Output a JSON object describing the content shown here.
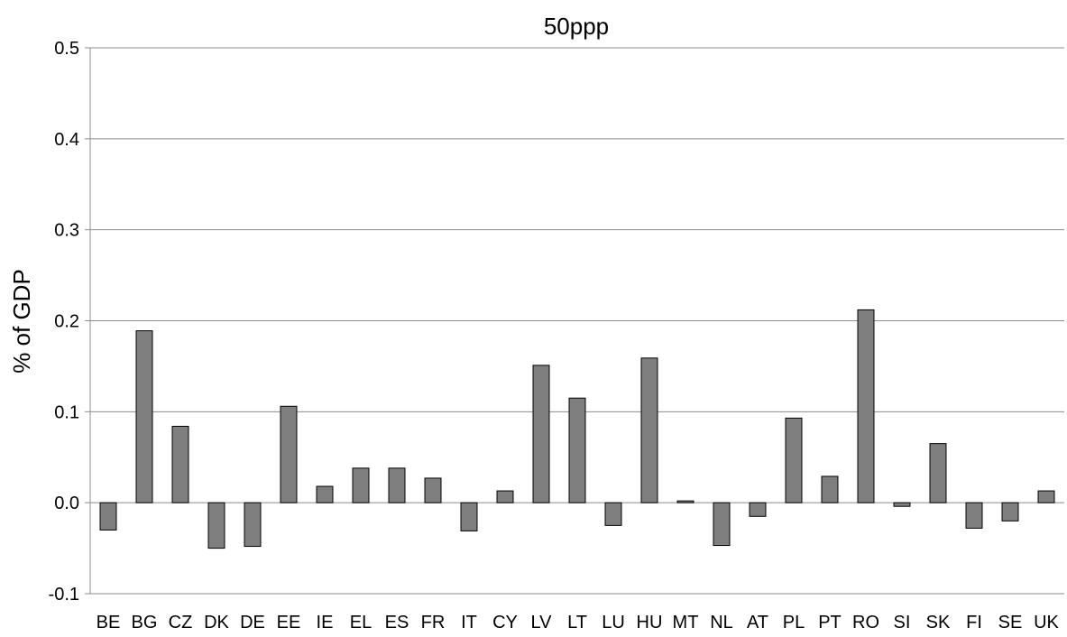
{
  "chart_data": {
    "type": "bar",
    "title": "50ppp",
    "xlabel": "",
    "ylabel": "% of GDP",
    "ylim": [
      -0.1,
      0.5
    ],
    "yticks": [
      "-0.1",
      "0.0",
      "0.1",
      "0.2",
      "0.3",
      "0.4",
      "0.5"
    ],
    "grid": true,
    "categories": [
      "BE",
      "BG",
      "CZ",
      "DK",
      "DE",
      "EE",
      "IE",
      "EL",
      "ES",
      "FR",
      "IT",
      "CY",
      "LV",
      "LT",
      "LU",
      "HU",
      "MT",
      "NL",
      "AT",
      "PL",
      "PT",
      "RO",
      "SI",
      "SK",
      "FI",
      "SE",
      "UK"
    ],
    "values": [
      -0.03,
      0.189,
      0.084,
      -0.05,
      -0.048,
      0.106,
      0.018,
      0.038,
      0.038,
      0.027,
      -0.031,
      0.013,
      0.151,
      0.115,
      -0.025,
      0.159,
      0.002,
      -0.047,
      -0.015,
      0.093,
      0.029,
      0.212,
      -0.004,
      0.065,
      -0.028,
      -0.02,
      0.013
    ],
    "bar_color": "#7f7f7f",
    "bar_edge_color": "#000000",
    "grid_color": "#8c8c8c"
  }
}
